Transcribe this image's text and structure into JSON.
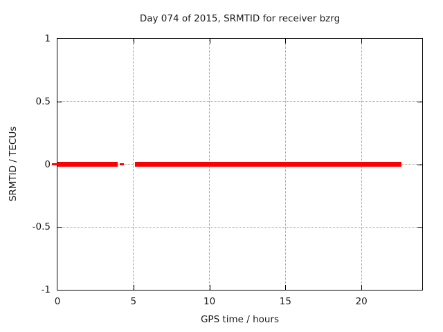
{
  "colors": {
    "background": "#ffffff",
    "axis": "#000000",
    "grid": "#9a9a9a",
    "text": "#1a1a1a",
    "series_red": "#ff0000"
  },
  "chart_data": {
    "type": "line",
    "title": "Day 074 of 2015, SRMTID for receiver bzrg",
    "xlabel": "GPS time / hours",
    "ylabel": "SRMTID / TECUs",
    "xlim": [
      0,
      24
    ],
    "ylim": [
      -1,
      1
    ],
    "grid": "dotted, at labeled ticks only",
    "legend": "none",
    "xticks": [
      {
        "value": 0,
        "label": "0",
        "grid": false
      },
      {
        "value": 5,
        "label": "5",
        "grid": true
      },
      {
        "value": 10,
        "label": "10",
        "grid": true
      },
      {
        "value": 15,
        "label": "15",
        "grid": true
      },
      {
        "value": 20,
        "label": "20",
        "grid": true
      }
    ],
    "yticks": [
      {
        "value": 1,
        "label": "1",
        "grid": false
      },
      {
        "value": 0.5,
        "label": "0.5",
        "grid": true
      },
      {
        "value": 0,
        "label": "0",
        "grid": true
      },
      {
        "value": -0.5,
        "label": "-0.5",
        "grid": true
      },
      {
        "value": -1,
        "label": "-1",
        "grid": false
      }
    ],
    "series": [
      {
        "name": "SRMTID",
        "color": "#ff0000",
        "description": "thick horizontal line at y=0 with a data gap between ~4.0 and ~5.1 hours",
        "y": 0,
        "segments": [
          {
            "x_start": -0.35,
            "x_end": 0.05,
            "thickness_px": 3
          },
          {
            "x_start": 0,
            "x_end": 3.95,
            "thickness_px": 7
          },
          {
            "x_start": 4.1,
            "x_end": 4.35,
            "thickness_px": 3
          },
          {
            "x_start": 5.1,
            "x_end": 22.65,
            "thickness_px": 7
          }
        ]
      }
    ]
  }
}
